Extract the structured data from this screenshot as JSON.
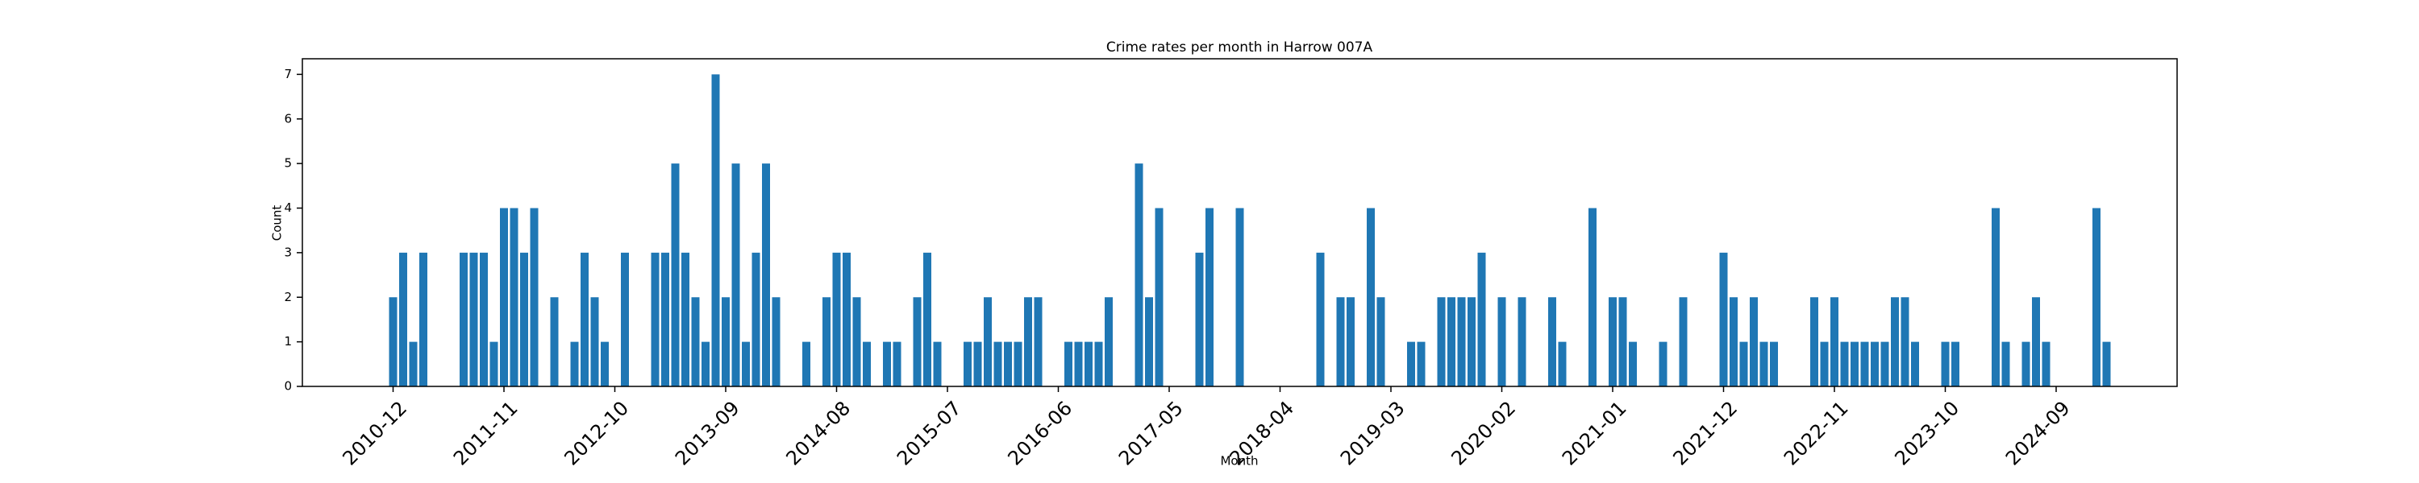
{
  "chart_data": {
    "type": "bar",
    "title": "Crime rates per month in Harrow 007A",
    "x_label": "Month",
    "y_label": "Count",
    "color": "#1f77b4",
    "x": [
      "2010-12",
      "2011-01",
      "2011-02",
      "2011-03",
      "2011-07",
      "2011-08",
      "2011-09",
      "2011-10",
      "2011-11",
      "2011-12",
      "2012-01",
      "2012-02",
      "2012-04",
      "2012-06",
      "2012-07",
      "2012-08",
      "2012-09",
      "2012-11",
      "2013-02",
      "2013-03",
      "2013-04",
      "2013-05",
      "2013-06",
      "2013-07",
      "2013-08",
      "2013-09",
      "2013-10",
      "2013-11",
      "2013-12",
      "2014-01",
      "2014-02",
      "2014-05",
      "2014-07",
      "2014-08",
      "2014-09",
      "2014-10",
      "2014-11",
      "2015-01",
      "2015-02",
      "2015-04",
      "2015-05",
      "2015-06",
      "2015-09",
      "2015-10",
      "2015-11",
      "2015-12",
      "2016-01",
      "2016-02",
      "2016-03",
      "2016-04",
      "2016-07",
      "2016-08",
      "2016-09",
      "2016-10",
      "2016-11",
      "2017-02",
      "2017-03",
      "2017-04",
      "2017-08",
      "2017-09",
      "2017-12",
      "2018-08",
      "2018-10",
      "2018-11",
      "2019-01",
      "2019-02",
      "2019-05",
      "2019-06",
      "2019-08",
      "2019-09",
      "2019-10",
      "2019-11",
      "2019-12",
      "2020-02",
      "2020-04",
      "2020-07",
      "2020-08",
      "2020-11",
      "2021-01",
      "2021-02",
      "2021-03",
      "2021-06",
      "2021-08",
      "2021-12",
      "2022-01",
      "2022-02",
      "2022-03",
      "2022-04",
      "2022-05",
      "2022-09",
      "2022-10",
      "2022-11",
      "2022-12",
      "2023-01",
      "2023-02",
      "2023-03",
      "2023-04",
      "2023-05",
      "2023-06",
      "2023-07",
      "2023-10",
      "2023-11",
      "2024-03",
      "2024-04",
      "2024-06",
      "2024-07",
      "2024-08",
      "2025-01",
      "2025-02"
    ],
    "values": [
      2,
      3,
      1,
      3,
      3,
      3,
      3,
      1,
      4,
      4,
      3,
      4,
      2,
      1,
      3,
      2,
      1,
      3,
      3,
      3,
      5,
      3,
      2,
      1,
      7,
      2,
      5,
      1,
      3,
      5,
      2,
      1,
      2,
      3,
      3,
      2,
      1,
      1,
      1,
      2,
      3,
      1,
      1,
      1,
      2,
      1,
      1,
      1,
      2,
      2,
      1,
      1,
      1,
      1,
      2,
      5,
      2,
      4,
      3,
      4,
      4,
      3,
      2,
      2,
      4,
      2,
      1,
      1,
      2,
      2,
      2,
      2,
      3,
      2,
      2,
      2,
      1,
      4,
      2,
      2,
      1,
      1,
      2,
      3,
      2,
      1,
      2,
      1,
      1,
      2,
      1,
      2,
      1,
      1,
      1,
      1,
      1,
      2,
      2,
      1,
      1,
      1,
      4,
      1,
      1,
      2,
      1,
      4,
      1
    ],
    "xlim": [
      "2010-03",
      "2025-09"
    ],
    "xticks": [
      "2010-12",
      "2011-11",
      "2012-10",
      "2013-09",
      "2014-08",
      "2015-07",
      "2016-06",
      "2017-05",
      "2018-04",
      "2019-03",
      "2020-02",
      "2021-01",
      "2021-12",
      "2022-11",
      "2023-10",
      "2024-09"
    ],
    "ylim": [
      0,
      7.35
    ],
    "yticks": [
      0,
      1,
      2,
      3,
      4,
      5,
      6,
      7
    ],
    "grid": false
  }
}
